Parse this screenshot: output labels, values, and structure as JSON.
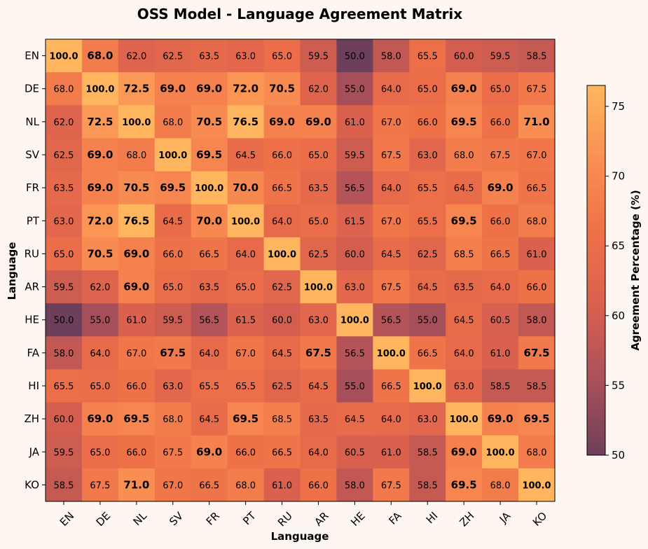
{
  "chart_data": {
    "type": "heatmap",
    "title": "OSS Model - Language Agreement Matrix",
    "xlabel": "Language",
    "ylabel": "Language",
    "categories": [
      "EN",
      "DE",
      "NL",
      "SV",
      "FR",
      "PT",
      "RU",
      "AR",
      "HE",
      "FA",
      "HI",
      "ZH",
      "JA",
      "KO"
    ],
    "values": [
      [
        100.0,
        68.0,
        62.0,
        62.5,
        63.5,
        63.0,
        65.0,
        59.5,
        50.0,
        58.0,
        65.5,
        60.0,
        59.5,
        58.5
      ],
      [
        68.0,
        100.0,
        72.5,
        69.0,
        69.0,
        72.0,
        70.5,
        62.0,
        55.0,
        64.0,
        65.0,
        69.0,
        65.0,
        67.5
      ],
      [
        62.0,
        72.5,
        100.0,
        68.0,
        70.5,
        76.5,
        69.0,
        69.0,
        61.0,
        67.0,
        66.0,
        69.5,
        66.0,
        71.0
      ],
      [
        62.5,
        69.0,
        68.0,
        100.0,
        69.5,
        64.5,
        66.0,
        65.0,
        59.5,
        67.5,
        63.0,
        68.0,
        67.5,
        67.0
      ],
      [
        63.5,
        69.0,
        70.5,
        69.5,
        100.0,
        70.0,
        66.5,
        63.5,
        56.5,
        64.0,
        65.5,
        64.5,
        69.0,
        66.5
      ],
      [
        63.0,
        72.0,
        76.5,
        64.5,
        70.0,
        100.0,
        64.0,
        65.0,
        61.5,
        67.0,
        65.5,
        69.5,
        66.0,
        68.0
      ],
      [
        65.0,
        70.5,
        69.0,
        66.0,
        66.5,
        64.0,
        100.0,
        62.5,
        60.0,
        64.5,
        62.5,
        68.5,
        66.5,
        61.0
      ],
      [
        59.5,
        62.0,
        69.0,
        65.0,
        63.5,
        65.0,
        62.5,
        100.0,
        63.0,
        67.5,
        64.5,
        63.5,
        64.0,
        66.0
      ],
      [
        50.0,
        55.0,
        61.0,
        59.5,
        56.5,
        61.5,
        60.0,
        63.0,
        100.0,
        56.5,
        55.0,
        64.5,
        60.5,
        58.0
      ],
      [
        58.0,
        64.0,
        67.0,
        67.5,
        64.0,
        67.0,
        64.5,
        67.5,
        56.5,
        100.0,
        66.5,
        64.0,
        61.0,
        67.5
      ],
      [
        65.5,
        65.0,
        66.0,
        63.0,
        65.5,
        65.5,
        62.5,
        64.5,
        55.0,
        66.5,
        100.0,
        63.0,
        58.5,
        58.5
      ],
      [
        60.0,
        69.0,
        69.5,
        68.0,
        64.5,
        69.5,
        68.5,
        63.5,
        64.5,
        64.0,
        63.0,
        100.0,
        69.0,
        69.5
      ],
      [
        59.5,
        65.0,
        66.0,
        67.5,
        69.0,
        66.0,
        66.5,
        64.0,
        60.5,
        61.0,
        58.5,
        69.0,
        100.0,
        68.0
      ],
      [
        58.5,
        67.5,
        71.0,
        67.0,
        66.5,
        68.0,
        61.0,
        66.0,
        58.0,
        67.5,
        58.5,
        69.5,
        68.0,
        100.0
      ]
    ],
    "color_range": [
      50,
      76.5
    ],
    "colorbar": {
      "label": "Agreement Percentage (%)",
      "ticks": [
        50,
        55,
        60,
        65,
        70,
        75
      ]
    },
    "colormap": [
      "#6e3f5b",
      "#a9505a",
      "#d8604f",
      "#ef7048",
      "#f98f52",
      "#ffb65e"
    ],
    "grid": false
  }
}
